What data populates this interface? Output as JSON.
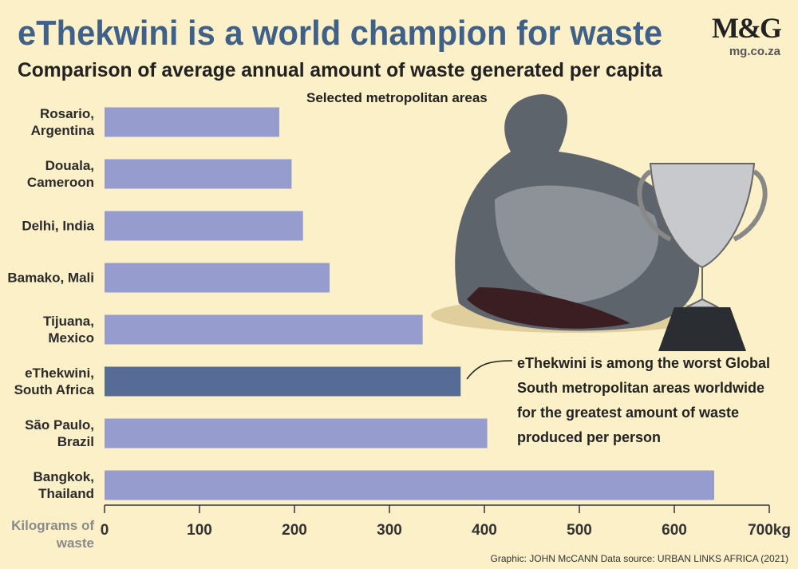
{
  "logo": {
    "brand": "M&G",
    "url": "mg.co.za"
  },
  "chart_data": {
    "type": "bar",
    "orientation": "horizontal",
    "title": "eThekwini is a world champion for waste",
    "subtitle": "Comparison of average annual amount of waste generated per capita",
    "note": "Selected metropolitan areas",
    "categories": [
      "Rosario, Argentina",
      "Douala, Cameroon",
      "Delhi, India",
      "Bamako, Mali",
      "Tijuana, Mexico",
      "eThekwini, South Africa",
      "São Paulo, Brazil",
      "Bangkok, Thailand"
    ],
    "values": [
      184,
      197,
      209,
      237,
      335,
      375,
      403,
      642
    ],
    "colors": [
      "#979cce",
      "#979cce",
      "#979cce",
      "#979cce",
      "#979cce",
      "#566c96",
      "#979cce",
      "#979cce"
    ],
    "xlim": [
      0,
      700
    ],
    "xticks": [
      0,
      100,
      200,
      300,
      400,
      500,
      600,
      {
        "value": 700,
        "label": "700kg"
      }
    ],
    "x_label": "Kilograms of waste",
    "annotation": "eThekwini is among the worst Global South metropolitan areas worldwide for the greatest amount of waste produced per person",
    "source": "Graphic: JOHN McCANN  Data source: URBAN LINKS AFRICA (2021)"
  }
}
